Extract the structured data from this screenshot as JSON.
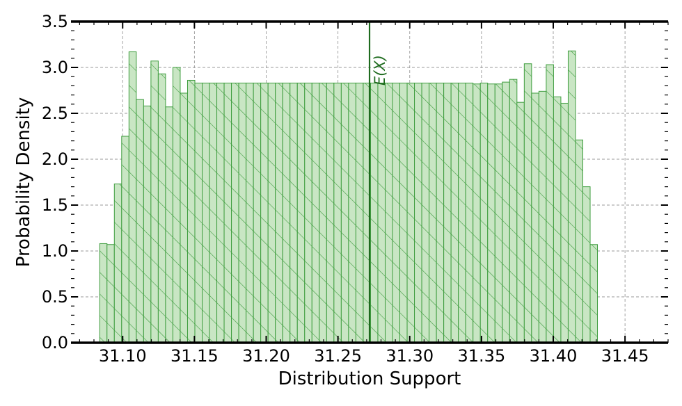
{
  "chart_data": {
    "type": "bar",
    "title": "",
    "xlabel": "Distribution Support",
    "ylabel": "Probability Density",
    "xlim": [
      31.064,
      31.48
    ],
    "ylim": [
      0,
      3.5
    ],
    "x_ticks": [
      31.1,
      31.15,
      31.2,
      31.25,
      31.3,
      31.35,
      31.4,
      31.45
    ],
    "x_tick_labels": [
      "31.10",
      "31.15",
      "31.20",
      "31.25",
      "31.30",
      "31.35",
      "31.40",
      "31.45"
    ],
    "y_ticks": [
      0.0,
      0.5,
      1.0,
      1.5,
      2.0,
      2.5,
      3.0,
      3.5
    ],
    "y_tick_labels": [
      "0.0",
      "0.5",
      "1.0",
      "1.5",
      "2.0",
      "2.5",
      "3.0",
      "3.5"
    ],
    "grid": true,
    "bin_start": 31.084,
    "bin_width": 0.0051,
    "values": [
      1.08,
      1.07,
      1.73,
      2.25,
      3.17,
      2.65,
      2.58,
      3.07,
      2.93,
      2.57,
      3.0,
      2.72,
      2.86,
      2.83,
      2.83,
      2.83,
      2.83,
      2.83,
      2.83,
      2.83,
      2.83,
      2.83,
      2.83,
      2.83,
      2.83,
      2.83,
      2.83,
      2.83,
      2.83,
      2.83,
      2.83,
      2.83,
      2.83,
      2.83,
      2.83,
      2.83,
      2.83,
      2.83,
      2.83,
      2.83,
      2.83,
      2.83,
      2.83,
      2.83,
      2.83,
      2.83,
      2.83,
      2.83,
      2.83,
      2.83,
      2.83,
      2.82,
      2.83,
      2.82,
      2.82,
      2.84,
      2.87,
      2.62,
      3.04,
      2.72,
      2.74,
      3.03,
      2.68,
      2.61,
      3.18,
      2.21,
      1.7,
      1.07
    ],
    "mean_line": {
      "x": 31.272,
      "label": "E(X)"
    },
    "colors": {
      "fill": "#c9e6c4",
      "edge": "#3d9c3d",
      "hatch": "#3d9c3d",
      "mean_line": "#1e6b1e",
      "grid": "#999999"
    }
  }
}
